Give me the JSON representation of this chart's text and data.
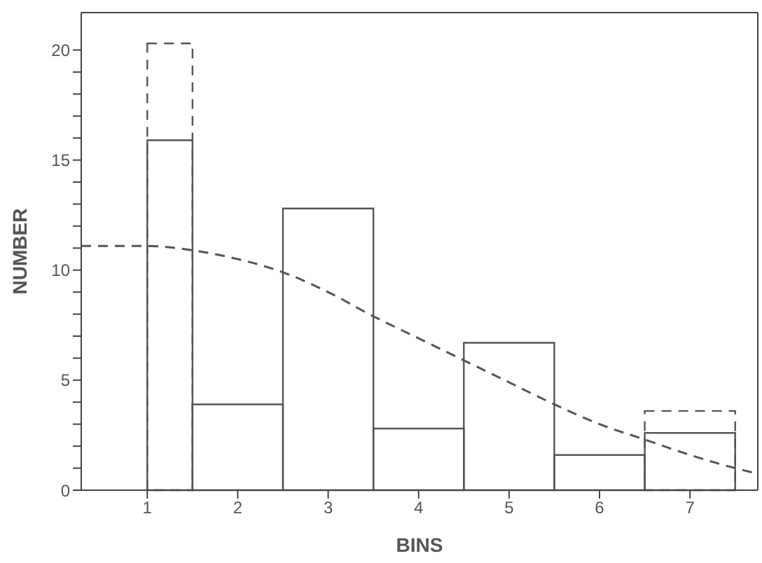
{
  "chart_data": {
    "type": "histogram",
    "xlabel": "BINS",
    "ylabel": "NUMBER",
    "bins": [
      1,
      1.5,
      2.5,
      3.5,
      4.5,
      5.5,
      6.5,
      7.5
    ],
    "series": [
      {
        "color": "#555555",
        "values": [
          15.9,
          3.9,
          12.8,
          2.8,
          6.7,
          1.6,
          2.6
        ]
      },
      {
        "color": "#555555",
        "line_style": "dashed",
        "values": [
          20.3,
          null,
          null,
          null,
          null,
          null,
          3.6
        ]
      },
      {
        "type": "line",
        "color": "#555555",
        "line_style": "dashed",
        "x": [
          0.27,
          1,
          1.5,
          2,
          2.5,
          3,
          3.5,
          4,
          4.5,
          5,
          5.5,
          6,
          6.5,
          7,
          7.5,
          7.75
        ],
        "values": [
          11.1,
          11.1,
          10.9,
          10.5,
          9.9,
          9.0,
          7.9,
          6.9,
          5.9,
          4.9,
          3.9,
          3.0,
          2.3,
          1.6,
          1.0,
          0.75
        ]
      }
    ],
    "xlim": [
      0.27,
      7.75
    ],
    "xticks": [
      1,
      2,
      3,
      4,
      5,
      6,
      7
    ],
    "ylim": [
      0,
      21.7
    ],
    "yticks": [
      0,
      {
        "value": 1,
        "label": null
      },
      {
        "value": 2,
        "label": null
      },
      {
        "value": 3,
        "label": null
      },
      {
        "value": 4,
        "label": null
      },
      5,
      {
        "value": 6,
        "label": null
      },
      {
        "value": 7,
        "label": null
      },
      {
        "value": 8,
        "label": null
      },
      {
        "value": 9,
        "label": null
      },
      10,
      {
        "value": 11,
        "label": null
      },
      {
        "value": 12,
        "label": null
      },
      {
        "value": 13,
        "label": null
      },
      {
        "value": 14,
        "label": null
      },
      15,
      {
        "value": 16,
        "label": null
      },
      {
        "value": 17,
        "label": null
      },
      {
        "value": 18,
        "label": null
      },
      {
        "value": 19,
        "label": null
      },
      20
    ],
    "grid": false,
    "marker": "none"
  }
}
